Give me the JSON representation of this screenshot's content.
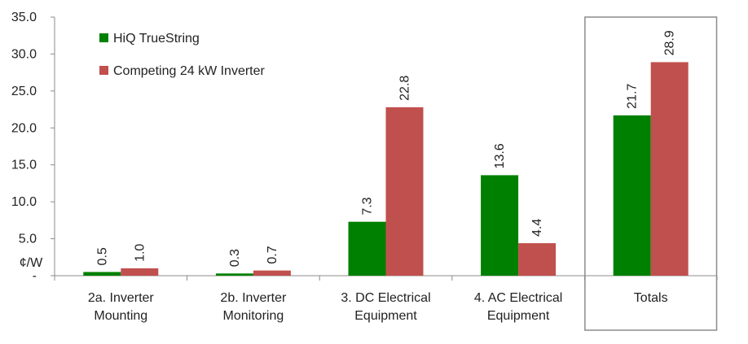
{
  "chart_data": {
    "type": "bar",
    "categories": [
      [
        "2a. Inverter",
        "Mounting"
      ],
      [
        "2b. Inverter",
        "Monitoring"
      ],
      [
        "3. DC Electrical",
        "Equipment"
      ],
      [
        "4. AC Electrical",
        "Equipment"
      ],
      [
        "Totals"
      ]
    ],
    "series": [
      {
        "name": "HiQ TrueString",
        "values": [
          0.5,
          0.3,
          7.3,
          13.6,
          21.7
        ],
        "labels": [
          "0.5",
          "0.3",
          "7.3",
          "13.6",
          "21.7"
        ],
        "color": "#008000"
      },
      {
        "name": "Competing 24 kW Inverter",
        "values": [
          1.0,
          0.7,
          22.8,
          4.4,
          28.9
        ],
        "labels": [
          "1.0",
          "0.7",
          "22.8",
          "4.4",
          "28.9"
        ],
        "color": "#C0504D"
      }
    ],
    "yticks": [
      "-",
      "5.0",
      "10.0",
      "15.0",
      "20.0",
      "25.0",
      "30.0",
      "35.0"
    ],
    "ylim": [
      0,
      35
    ],
    "unit_label": "¢/W",
    "highlight_category": "Totals",
    "legend_position": "top-left",
    "grid": false
  }
}
